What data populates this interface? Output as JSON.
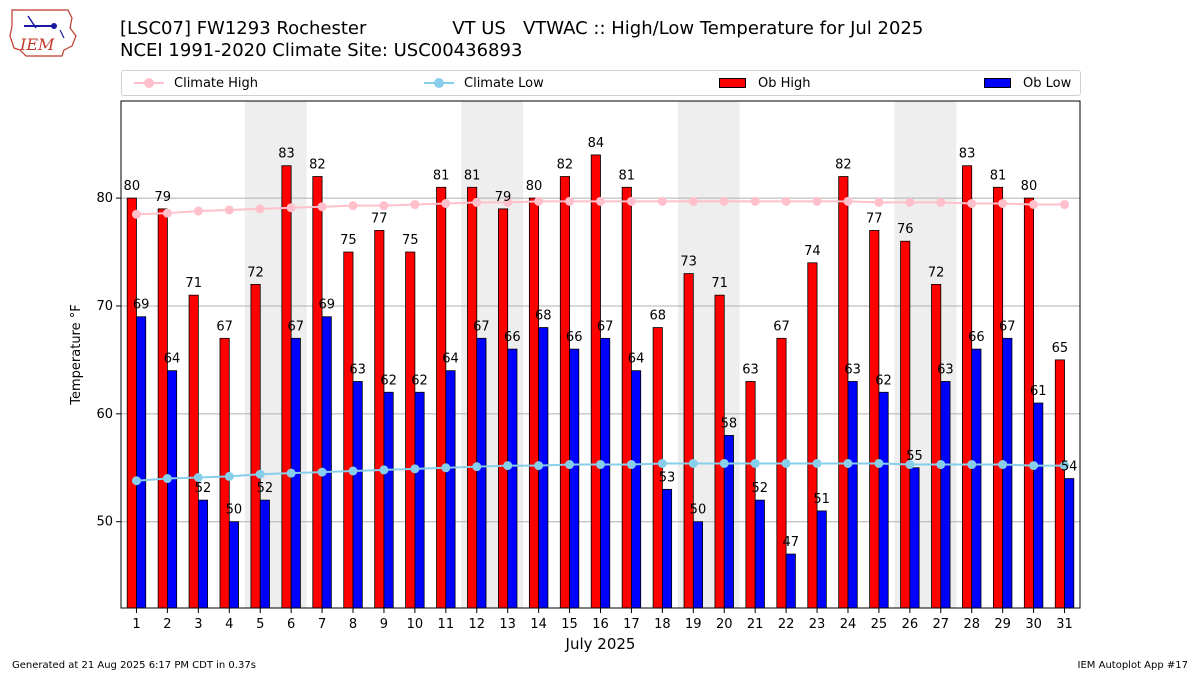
{
  "header": {
    "title_line1": "[LSC07] FW1293 Rochester               VT US   VTWAC :: High/Low Temperature for Jul 2025",
    "title_line2": "NCEI 1991-2020 Climate Site: USC00436893",
    "logo_text": "IEM"
  },
  "legend": {
    "climate_high": "Climate High",
    "climate_low": "Climate Low",
    "ob_high": "Ob High",
    "ob_low": "Ob Low"
  },
  "colors": {
    "ob_high": "#ff0000",
    "ob_low": "#0000ff",
    "climate_high": "#ffc0cb",
    "climate_low": "#87ceeb",
    "weekend_shade": "#eeeeee",
    "grid": "#b0b0b0"
  },
  "chart_data": {
    "type": "bar",
    "title": "[LSC07] FW1293 Rochester VT US VTWAC :: High/Low Temperature for Jul 2025",
    "xlabel": "July 2025",
    "ylabel": "Temperature °F",
    "ylim": [
      42,
      89
    ],
    "yticks": [
      50,
      60,
      70,
      80
    ],
    "grid": true,
    "legend_position": "top",
    "categories": [
      1,
      2,
      3,
      4,
      5,
      6,
      7,
      8,
      9,
      10,
      11,
      12,
      13,
      14,
      15,
      16,
      17,
      18,
      19,
      20,
      21,
      22,
      23,
      24,
      25,
      26,
      27,
      28,
      29,
      30,
      31
    ],
    "shaded_days": [
      [
        5,
        6
      ],
      [
        12,
        13
      ],
      [
        19,
        20
      ],
      [
        26,
        27
      ]
    ],
    "series": [
      {
        "name": "Ob High",
        "kind": "bar",
        "values": [
          80,
          79,
          71,
          67,
          72,
          83,
          82,
          75,
          77,
          75,
          81,
          81,
          79,
          80,
          82,
          84,
          81,
          68,
          73,
          71,
          63,
          67,
          74,
          82,
          77,
          76,
          72,
          83,
          81,
          80,
          65
        ]
      },
      {
        "name": "Ob Low",
        "kind": "bar",
        "values": [
          69,
          64,
          52,
          50,
          52,
          67,
          69,
          63,
          62,
          62,
          64,
          67,
          66,
          68,
          66,
          67,
          64,
          53,
          50,
          58,
          52,
          47,
          51,
          63,
          62,
          55,
          63,
          66,
          67,
          61,
          54
        ]
      },
      {
        "name": "Climate High",
        "kind": "line",
        "values": [
          78.5,
          78.6,
          78.8,
          78.9,
          79.0,
          79.1,
          79.2,
          79.3,
          79.3,
          79.4,
          79.5,
          79.6,
          79.6,
          79.7,
          79.7,
          79.7,
          79.7,
          79.7,
          79.7,
          79.7,
          79.7,
          79.7,
          79.7,
          79.7,
          79.6,
          79.6,
          79.6,
          79.5,
          79.5,
          79.4,
          79.4
        ]
      },
      {
        "name": "Climate Low",
        "kind": "line",
        "values": [
          53.8,
          54.0,
          54.1,
          54.2,
          54.4,
          54.5,
          54.6,
          54.7,
          54.8,
          54.9,
          55.0,
          55.1,
          55.2,
          55.2,
          55.3,
          55.3,
          55.3,
          55.4,
          55.4,
          55.4,
          55.4,
          55.4,
          55.4,
          55.4,
          55.4,
          55.3,
          55.3,
          55.3,
          55.3,
          55.2,
          55.2
        ]
      }
    ]
  },
  "footer": {
    "left": "Generated at 21 Aug 2025 6:17 PM CDT in 0.37s",
    "right": "IEM Autoplot App #17"
  }
}
